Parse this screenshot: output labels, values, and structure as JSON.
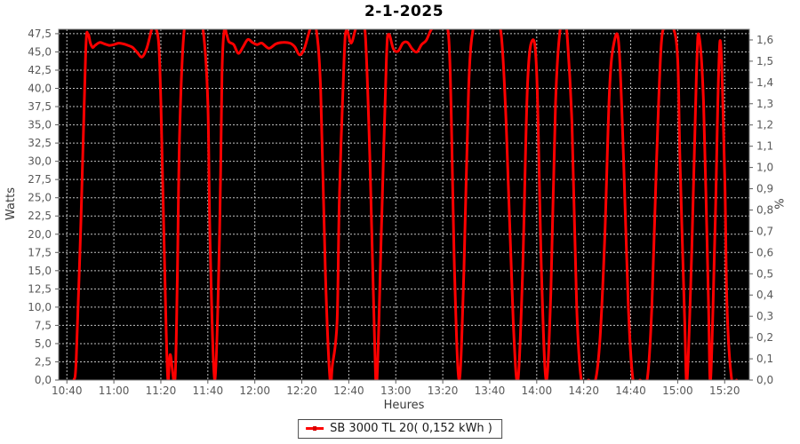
{
  "chart_data": {
    "type": "line",
    "title": "2-1-2025",
    "xlabel": "Heures",
    "ylabel_left": "Watts",
    "ylabel_right": "%",
    "plot_bg": "#000000",
    "grid": true,
    "grid_color": "#c0c0c0",
    "spine_color": "#808080",
    "tick_color": "#5a5a5a",
    "tick_label_color": "#595959",
    "line_color": "#fe0000",
    "x_ticks": [
      "10:40",
      "11:00",
      "11:20",
      "11:40",
      "12:00",
      "12:20",
      "12:40",
      "13:00",
      "13:20",
      "13:40",
      "14:00",
      "14:20",
      "14:40",
      "15:00",
      "15:20"
    ],
    "y_ticks_left": [
      "0,0",
      "2,5",
      "5,0",
      "7,5",
      "10,0",
      "12,5",
      "15,0",
      "17,5",
      "20,0",
      "22,5",
      "25,0",
      "27,5",
      "30,0",
      "32,5",
      "35,0",
      "37,5",
      "40,0",
      "42,5",
      "45,0",
      "47,5"
    ],
    "y_ticks_right": [
      "0,0",
      "0,1",
      "0,2",
      "0,3",
      "0,4",
      "0,5",
      "0,6",
      "0,7",
      "0,8",
      "0,9",
      "1,0",
      "1,1",
      "1,2",
      "1,3",
      "1,4",
      "1,5",
      "1,6"
    ],
    "x_range_minutes": [
      636.5,
      930.5
    ],
    "y_range_left": [
      0,
      48.1
    ],
    "y_range_right": [
      0,
      1.65
    ],
    "legend": {
      "label": "SB 3000 TL 20( 0,152 kWh )",
      "position": "bottom"
    },
    "series": [
      {
        "name": "SB 3000 TL 20( 0,152 kWh )",
        "color": "#fe0000",
        "points": [
          [
            "10:43",
            0
          ],
          [
            "10:44",
            3
          ],
          [
            "10:46",
            22
          ],
          [
            "10:48",
            45
          ],
          [
            "10:49",
            47.4
          ],
          [
            "10:50",
            46.2
          ],
          [
            "10:51",
            45.6
          ],
          [
            "10:52",
            45.9
          ],
          [
            "10:54",
            46.3
          ],
          [
            "10:56",
            46.1
          ],
          [
            "10:58",
            45.9
          ],
          [
            "11:00",
            46.0
          ],
          [
            "11:02",
            46.2
          ],
          [
            "11:04",
            46.1
          ],
          [
            "11:06",
            45.9
          ],
          [
            "11:08",
            45.6
          ],
          [
            "11:10",
            44.9
          ],
          [
            "11:12",
            44.3
          ],
          [
            "11:14",
            45.5
          ],
          [
            "11:16",
            48.0
          ],
          [
            "11:17",
            48.6
          ],
          [
            "11:19",
            46.5
          ],
          [
            "11:20",
            38
          ],
          [
            "11:22",
            10
          ],
          [
            "11:23",
            0
          ],
          [
            "11:24",
            3.5
          ],
          [
            "11:26",
            0
          ],
          [
            "11:27",
            14
          ],
          [
            "11:28",
            34
          ],
          [
            "11:30",
            48.2
          ],
          [
            "11:33",
            48.6
          ],
          [
            "11:36",
            48.6
          ],
          [
            "11:38",
            48.0
          ],
          [
            "11:40",
            38
          ],
          [
            "11:41",
            18
          ],
          [
            "11:43",
            0
          ],
          [
            "11:45",
            20
          ],
          [
            "11:46",
            42
          ],
          [
            "11:47",
            48.0
          ],
          [
            "11:48",
            47.4
          ],
          [
            "11:49",
            46.4
          ],
          [
            "11:51",
            46.0
          ],
          [
            "11:53",
            44.8
          ],
          [
            "11:55",
            45.7
          ],
          [
            "11:57",
            46.7
          ],
          [
            "11:59",
            46.3
          ],
          [
            "12:01",
            46.0
          ],
          [
            "12:03",
            46.2
          ],
          [
            "12:06",
            45.5
          ],
          [
            "12:09",
            46.1
          ],
          [
            "12:12",
            46.3
          ],
          [
            "12:15",
            46.2
          ],
          [
            "12:17",
            45.7
          ],
          [
            "12:19",
            44.6
          ],
          [
            "12:21",
            45.4
          ],
          [
            "12:23",
            47.6
          ],
          [
            "12:24",
            48.5
          ],
          [
            "12:26",
            48.4
          ],
          [
            "12:28",
            40
          ],
          [
            "12:30",
            15
          ],
          [
            "12:32",
            0
          ],
          [
            "12:33",
            2
          ],
          [
            "12:35",
            8
          ],
          [
            "12:36",
            25
          ],
          [
            "12:38",
            44
          ],
          [
            "12:39",
            48.0
          ],
          [
            "12:41",
            46.2
          ],
          [
            "12:43",
            48.2
          ],
          [
            "12:45",
            48.6
          ],
          [
            "12:47",
            47.5
          ],
          [
            "12:49",
            30
          ],
          [
            "12:51",
            5
          ],
          [
            "12:52",
            0
          ],
          [
            "12:54",
            22
          ],
          [
            "12:56",
            44
          ],
          [
            "12:57",
            47.4
          ],
          [
            "12:59",
            45.4
          ],
          [
            "13:01",
            45.1
          ],
          [
            "13:03",
            46.2
          ],
          [
            "13:05",
            46.3
          ],
          [
            "13:07",
            45.4
          ],
          [
            "13:09",
            45.0
          ],
          [
            "13:11",
            46.0
          ],
          [
            "13:13",
            46.6
          ],
          [
            "13:15",
            48.0
          ],
          [
            "13:17",
            48.5
          ],
          [
            "13:21",
            48.5
          ],
          [
            "13:23",
            44
          ],
          [
            "13:25",
            15
          ],
          [
            "13:27",
            0
          ],
          [
            "13:29",
            15
          ],
          [
            "13:31",
            40
          ],
          [
            "13:33",
            48.3
          ],
          [
            "13:36",
            48.6
          ],
          [
            "13:40",
            48.6
          ],
          [
            "13:43",
            48.5
          ],
          [
            "13:45",
            47
          ],
          [
            "13:47",
            35
          ],
          [
            "13:50",
            8
          ],
          [
            "13:52",
            0
          ],
          [
            "13:54",
            15
          ],
          [
            "13:56",
            40
          ],
          [
            "13:58",
            46.5
          ],
          [
            "14:00",
            42
          ],
          [
            "14:02",
            15
          ],
          [
            "14:04",
            0
          ],
          [
            "14:06",
            12
          ],
          [
            "14:08",
            38
          ],
          [
            "14:10",
            48.2
          ],
          [
            "14:12",
            48.5
          ],
          [
            "14:13",
            47
          ],
          [
            "14:15",
            35
          ],
          [
            "14:17",
            10
          ],
          [
            "14:19",
            0
          ],
          [
            "14:22",
            0
          ],
          [
            "14:25",
            0
          ],
          [
            "14:27",
            6
          ],
          [
            "14:29",
            20
          ],
          [
            "14:31",
            40
          ],
          [
            "14:33",
            46.4
          ],
          [
            "14:35",
            45.8
          ],
          [
            "14:37",
            30
          ],
          [
            "14:39",
            10
          ],
          [
            "14:41",
            0
          ],
          [
            "14:44",
            0
          ],
          [
            "14:47",
            0
          ],
          [
            "14:49",
            10
          ],
          [
            "14:51",
            30
          ],
          [
            "14:53",
            46
          ],
          [
            "14:55",
            48.3
          ],
          [
            "14:58",
            48.4
          ],
          [
            "15:00",
            44
          ],
          [
            "15:01",
            30
          ],
          [
            "15:03",
            8
          ],
          [
            "15:04",
            0
          ],
          [
            "15:06",
            18
          ],
          [
            "15:08",
            42
          ],
          [
            "15:09",
            47.3
          ],
          [
            "15:11",
            38
          ],
          [
            "15:13",
            12
          ],
          [
            "15:14",
            0
          ],
          [
            "15:16",
            22
          ],
          [
            "15:18",
            46.5
          ],
          [
            "15:20",
            28
          ],
          [
            "15:21",
            10
          ],
          [
            "15:23",
            0
          ],
          [
            "15:25",
            0
          ]
        ]
      }
    ]
  }
}
